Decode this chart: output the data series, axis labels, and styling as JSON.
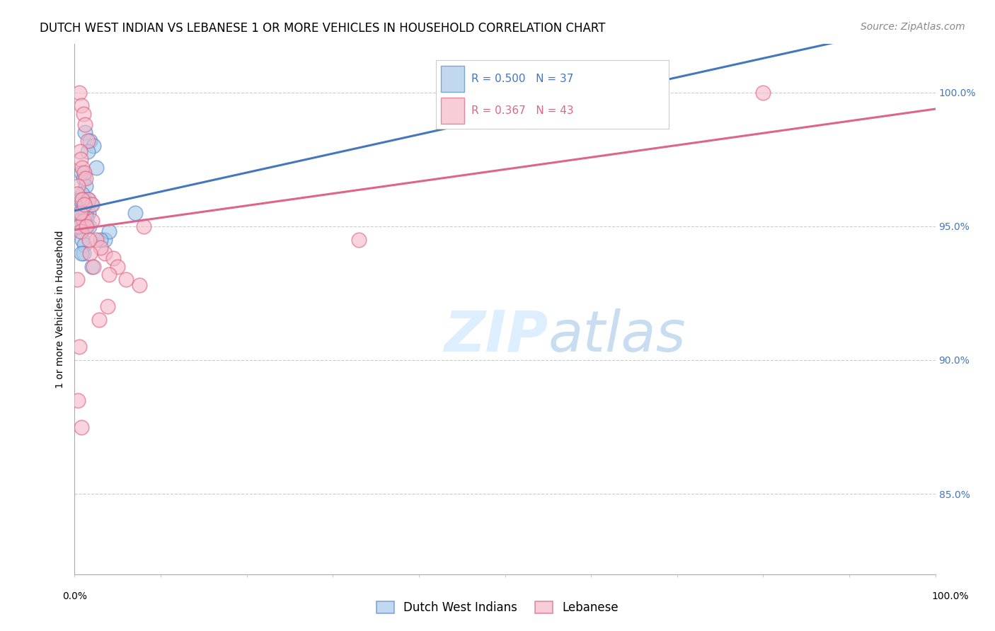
{
  "title": "DUTCH WEST INDIAN VS LEBANESE 1 OR MORE VEHICLES IN HOUSEHOLD CORRELATION CHART",
  "source": "Source: ZipAtlas.com",
  "ylabel": "1 or more Vehicles in Household",
  "ytick_values": [
    85.0,
    90.0,
    95.0,
    100.0
  ],
  "xlim": [
    0.0,
    100.0
  ],
  "ylim": [
    82.0,
    101.8
  ],
  "legend_blue_label": "Dutch West Indians",
  "legend_pink_label": "Lebanese",
  "R_blue": 0.5,
  "N_blue": 37,
  "R_pink": 0.367,
  "N_pink": 43,
  "blue_color": "#a8c8e8",
  "pink_color": "#f5b8c8",
  "blue_edge_color": "#5588cc",
  "pink_edge_color": "#e06080",
  "blue_line_color": "#4477bb",
  "pink_line_color": "#dd6688",
  "background_color": "#ffffff",
  "watermark_color": "#ddeeff",
  "blue_x": [
    1.2,
    1.8,
    2.2,
    1.5,
    2.5,
    0.8,
    1.0,
    1.3,
    0.9,
    1.1,
    0.7,
    0.6,
    1.6,
    1.4,
    0.5,
    1.2,
    0.8,
    0.9,
    1.1,
    1.0,
    0.4,
    0.6,
    0.7,
    0.5,
    0.3,
    3.5,
    2.0,
    1.7,
    0.8,
    1.3,
    4.0,
    56.0,
    66.0,
    7.0,
    3.0,
    1.5,
    1.9
  ],
  "blue_y": [
    98.5,
    98.2,
    98.0,
    97.8,
    97.2,
    97.0,
    96.8,
    96.5,
    96.2,
    96.0,
    95.8,
    95.7,
    95.5,
    95.3,
    95.2,
    95.0,
    94.8,
    94.5,
    94.3,
    94.0,
    95.8,
    96.0,
    95.5,
    95.2,
    95.0,
    94.5,
    93.5,
    95.0,
    94.0,
    95.5,
    94.8,
    100.0,
    100.0,
    95.5,
    94.5,
    96.0,
    95.8
  ],
  "pink_x": [
    0.5,
    0.8,
    1.0,
    1.2,
    1.5,
    0.6,
    0.7,
    0.9,
    1.1,
    1.3,
    0.4,
    0.3,
    1.6,
    2.0,
    0.8,
    1.0,
    0.5,
    0.7,
    2.5,
    3.5,
    4.5,
    5.0,
    6.0,
    7.5,
    4.0,
    3.0,
    2.0,
    1.8,
    8.0,
    33.0,
    80.0,
    0.6,
    0.9,
    1.1,
    1.4,
    1.7,
    2.2,
    2.8,
    0.4,
    0.5,
    0.3,
    3.8,
    0.8
  ],
  "pink_y": [
    100.0,
    99.5,
    99.2,
    98.8,
    98.2,
    97.8,
    97.5,
    97.2,
    97.0,
    96.8,
    96.5,
    96.2,
    96.0,
    95.8,
    95.5,
    95.2,
    95.0,
    94.8,
    94.5,
    94.0,
    93.8,
    93.5,
    93.0,
    92.8,
    93.2,
    94.2,
    95.2,
    94.0,
    95.0,
    94.5,
    100.0,
    95.5,
    96.0,
    95.8,
    95.0,
    94.5,
    93.5,
    91.5,
    88.5,
    90.5,
    93.0,
    92.0,
    87.5
  ],
  "title_fontsize": 12,
  "axis_label_fontsize": 10,
  "tick_fontsize": 10,
  "legend_fontsize": 12,
  "source_fontsize": 10
}
